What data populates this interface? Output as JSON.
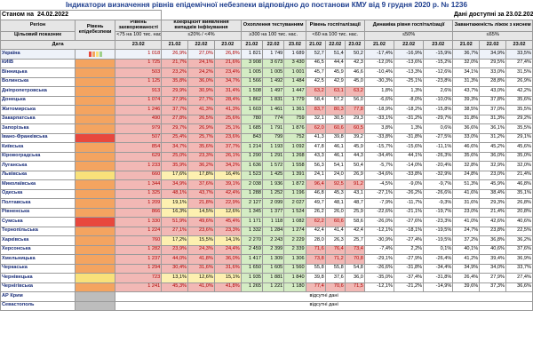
{
  "title": "Індикатори визначення рівнів епідемічної небезпеки відповідно до постанови КМУ від 9 грудня 2020 р. № 1236",
  "meta": {
    "as_of_label": "Станом на",
    "as_of_date": "24.02.2022",
    "available_label": "Дані доступні за 23.02.2022"
  },
  "headers": {
    "region": "Регіон",
    "level": "Рівень епідебезпеки",
    "incidence": "Рівень захворюваності",
    "detection": "Коефіцієнт виявлення випадків інфікування",
    "testing": "Охоплення тестуванням",
    "hospital": "Рівень госпіталізації",
    "dynamics": "Динаміка рівня госпіталізації",
    "beds": "Завантаженість ліжок з киснем",
    "target_label": "Цільовий показник",
    "incidence_target": "<75 на 100 тис. нас.",
    "detection_target": "≤20% / <4%",
    "testing_target": "≥300 на 100 тис. нас.",
    "hospital_target": "<60 на 100 тис. нас.",
    "dynamics_target": "≤50%",
    "beds_target": "≤65%",
    "date_label": "Дата",
    "d23": "23.02",
    "d21": "21.02",
    "d22": "22.02"
  },
  "no_data_text": "відсутні дані",
  "colors": {
    "red": "#e8483d",
    "orange": "#f4a460",
    "yellow": "#f9e17a",
    "green": "#9fd08a",
    "grey": "#bdbdbd"
  },
  "rows": [
    {
      "name": "Україна",
      "level": "mini",
      "inc": "1 018",
      "det": [
        "26,9%",
        "27,0%",
        "26,8%"
      ],
      "tst": [
        "1 821",
        "1 749",
        "1 689"
      ],
      "hos": [
        "52,7",
        "51,4",
        "50,2"
      ],
      "dyn": [
        "-17,4%",
        "-16,9%",
        "-15,9%"
      ],
      "bed": [
        "36,7%",
        "34,9%",
        "33,5%"
      ]
    },
    {
      "name": "КИЇВ",
      "level": "orange",
      "inc": "1 725",
      "det": [
        "21,7%",
        "24,1%",
        "21,6%"
      ],
      "tst": [
        "3 908",
        "3 673",
        "3 430"
      ],
      "hos": [
        "46,5",
        "44,4",
        "42,3"
      ],
      "dyn": [
        "-12,0%",
        "-13,6%",
        "-15,2%"
      ],
      "bed": [
        "32,0%",
        "29,5%",
        "27,4%"
      ]
    },
    {
      "name": "Вінницька",
      "level": "orange",
      "inc": "503",
      "det": [
        "23,2%",
        "24,2%",
        "23,4%"
      ],
      "tst": [
        "1 005",
        "1 005",
        "1 001"
      ],
      "hos": [
        "45,7",
        "45,9",
        "46,6"
      ],
      "dyn": [
        "-10,4%",
        "-13,3%",
        "-12,6%"
      ],
      "bed": [
        "34,1%",
        "33,0%",
        "31,5%"
      ]
    },
    {
      "name": "Волинська",
      "level": "orange",
      "inc": "1 125",
      "det": [
        "35,8%",
        "36,0%",
        "34,7%"
      ],
      "tst": [
        "1 566",
        "1 492",
        "1 484"
      ],
      "hos": [
        "42,5",
        "42,9",
        "45,0"
      ],
      "dyn": [
        "-30,3%",
        "-25,1%",
        "-23,8%"
      ],
      "bed": [
        "31,3%",
        "28,8%",
        "26,9%"
      ]
    },
    {
      "name": "Дніпропетровська",
      "level": "orange",
      "inc": "913",
      "det": [
        "29,9%",
        "30,9%",
        "31,4%"
      ],
      "tst": [
        "1 508",
        "1 497",
        "1 447"
      ],
      "hos": [
        "63,2",
        "63,1",
        "63,2"
      ],
      "dyn": [
        "1,8%",
        "1,3%",
        "2,6%"
      ],
      "bed": [
        "43,7%",
        "43,0%",
        "42,2%"
      ]
    },
    {
      "name": "Донецька",
      "level": "orange",
      "inc": "1 074",
      "det": [
        "27,9%",
        "27,7%",
        "28,4%"
      ],
      "tst": [
        "1 862",
        "1 831",
        "1 779"
      ],
      "hos": [
        "58,4",
        "57,2",
        "56,0"
      ],
      "dyn": [
        "-6,6%",
        "-8,0%",
        "-10,0%"
      ],
      "bed": [
        "39,3%",
        "37,8%",
        "35,6%"
      ]
    },
    {
      "name": "Житомирська",
      "level": "orange",
      "inc": "1 246",
      "det": [
        "37,7%",
        "41,3%",
        "41,3%"
      ],
      "tst": [
        "1 603",
        "1 461",
        "1 361"
      ],
      "hos": [
        "83,7",
        "80,3",
        "77,8"
      ],
      "dyn": [
        "-18,9%",
        "-18,2%",
        "-15,8%"
      ],
      "bed": [
        "38,5%",
        "37,0%",
        "35,5%"
      ]
    },
    {
      "name": "Закарпатська",
      "level": "orange",
      "inc": "490",
      "det": [
        "27,8%",
        "26,5%",
        "25,6%"
      ],
      "tst": [
        "780",
        "774",
        "759"
      ],
      "hos": [
        "32,1",
        "30,5",
        "29,3"
      ],
      "dyn": [
        "-33,1%",
        "-31,2%",
        "-29,7%"
      ],
      "bed": [
        "31,8%",
        "31,3%",
        "29,2%"
      ]
    },
    {
      "name": "Запорізька",
      "level": "orange",
      "inc": "979",
      "det": [
        "29,7%",
        "26,9%",
        "25,1%"
      ],
      "tst": [
        "1 685",
        "1 791",
        "1 876"
      ],
      "hos": [
        "62,0",
        "60,6",
        "60,5"
      ],
      "dyn": [
        "3,8%",
        "1,3%",
        "0,6%"
      ],
      "bed": [
        "36,6%",
        "36,1%",
        "35,5%"
      ]
    },
    {
      "name": "Івано-Франківська",
      "level": "red",
      "inc": "507",
      "det": [
        "25,4%",
        "25,7%",
        "23,6%"
      ],
      "tst": [
        "843",
        "799",
        "752"
      ],
      "hos": [
        "41,3",
        "39,8",
        "39,2"
      ],
      "dyn": [
        "-33,8%",
        "-31,8%",
        "-27,5%"
      ],
      "bed": [
        "33,0%",
        "31,2%",
        "29,1%"
      ]
    },
    {
      "name": "Київська",
      "level": "orange",
      "inc": "854",
      "det": [
        "34,7%",
        "35,6%",
        "37,7%"
      ],
      "tst": [
        "1 214",
        "1 193",
        "1 092"
      ],
      "hos": [
        "47,8",
        "46,1",
        "45,9"
      ],
      "dyn": [
        "-15,7%",
        "-15,6%",
        "-11,1%"
      ],
      "bed": [
        "46,6%",
        "45,2%",
        "45,6%"
      ]
    },
    {
      "name": "Кіровоградська",
      "level": "orange",
      "inc": "629",
      "det": [
        "25,0%",
        "23,3%",
        "26,1%"
      ],
      "tst": [
        "1 290",
        "1 291",
        "1 268"
      ],
      "hos": [
        "43,3",
        "46,1",
        "44,3"
      ],
      "dyn": [
        "-34,4%",
        "44,1%",
        "-26,3%"
      ],
      "bed": [
        "35,6%",
        "36,0%",
        "35,0%"
      ]
    },
    {
      "name": "Луганська",
      "level": "orange",
      "inc": "1 233",
      "det": [
        "35,9%",
        "36,2%",
        "34,2%"
      ],
      "tst": [
        "1 636",
        "1 572",
        "1 558"
      ],
      "hos": [
        "56,3",
        "54,1",
        "50,4"
      ],
      "dyn": [
        "-5,7%",
        "-14,0%",
        "-20,4%"
      ],
      "bed": [
        "32,8%",
        "32,9%",
        "32,0%"
      ]
    },
    {
      "name": "Львівська",
      "level": "yellow",
      "inc": "660",
      "det": [
        "17,6%",
        "17,8%",
        "16,4%"
      ],
      "tst": [
        "1 523",
        "1 425",
        "1 391"
      ],
      "hos": [
        "24,1",
        "24,0",
        "26,9"
      ],
      "dyn": [
        "-34,6%",
        "-33,8%",
        "-32,9%"
      ],
      "bed": [
        "24,8%",
        "23,0%",
        "21,4%"
      ]
    },
    {
      "name": "Миколаївська",
      "level": "orange",
      "inc": "1 344",
      "det": [
        "34,9%",
        "37,6%",
        "39,1%"
      ],
      "tst": [
        "2 038",
        "1 936",
        "1 872"
      ],
      "hos": [
        "96,4",
        "92,5",
        "91,2"
      ],
      "dyn": [
        "-4,5%",
        "-9,0%",
        "-9,7%"
      ],
      "bed": [
        "51,3%",
        "45,9%",
        "46,8%"
      ]
    },
    {
      "name": "Одеська",
      "level": "orange",
      "inc": "1 325",
      "det": [
        "48,1%",
        "43,7%",
        "42,4%"
      ],
      "tst": [
        "1 288",
        "1 252",
        "1 196"
      ],
      "hos": [
        "46,8",
        "45,3",
        "43,1"
      ],
      "dyn": [
        "-27,1%",
        "-26,2%",
        "-26,6%"
      ],
      "bed": [
        "41,6%",
        "38,4%",
        "35,1%"
      ]
    },
    {
      "name": "Полтавська",
      "level": "orange",
      "inc": "1 209",
      "det": [
        "19,1%",
        "21,8%",
        "22,9%"
      ],
      "tst": [
        "2 127",
        "2 099",
        "2 027"
      ],
      "hos": [
        "49,7",
        "48,1",
        "48,7"
      ],
      "dyn": [
        "-7,9%",
        "-11,7%",
        "-9,3%"
      ],
      "bed": [
        "31,6%",
        "29,3%",
        "26,8%"
      ]
    },
    {
      "name": "Рівненська",
      "level": "orange",
      "inc": "866",
      "det": [
        "16,3%",
        "14,5%",
        "12,6%"
      ],
      "tst": [
        "1 345",
        "1 377",
        "1 524"
      ],
      "hos": [
        "26,2",
        "26,0",
        "25,9"
      ],
      "dyn": [
        "-22,6%",
        "-21,1%",
        "-19,7%"
      ],
      "bed": [
        "23,0%",
        "21,4%",
        "20,8%"
      ]
    },
    {
      "name": "Сумська",
      "level": "red",
      "inc": "1 330",
      "det": [
        "51,9%",
        "49,6%",
        "45,4%"
      ],
      "tst": [
        "1 171",
        "1 118",
        "1 082"
      ],
      "hos": [
        "62,2",
        "60,6",
        "58,6"
      ],
      "dyn": [
        "-26,0%",
        "-27,6%",
        "-23,3%"
      ],
      "bed": [
        "41,0%",
        "42,6%",
        "40,6%"
      ]
    },
    {
      "name": "Тернопільська",
      "level": "orange",
      "inc": "1 224",
      "det": [
        "27,1%",
        "23,6%",
        "23,3%"
      ],
      "tst": [
        "1 332",
        "1 284",
        "1 274"
      ],
      "hos": [
        "42,4",
        "41,4",
        "42,4"
      ],
      "dyn": [
        "-12,1%",
        "-18,1%",
        "-19,5%"
      ],
      "bed": [
        "24,7%",
        "23,8%",
        "22,5%"
      ]
    },
    {
      "name": "Харківська",
      "level": "orange",
      "inc": "760",
      "det": [
        "17,2%",
        "15,5%",
        "14,1%"
      ],
      "tst": [
        "2 270",
        "2 243",
        "2 229"
      ],
      "hos": [
        "28,0",
        "26,3",
        "25,7"
      ],
      "dyn": [
        "-30,9%",
        "-27,4%",
        "-19,5%"
      ],
      "bed": [
        "37,2%",
        "36,8%",
        "36,2%"
      ]
    },
    {
      "name": "Херсонська",
      "level": "orange",
      "inc": "1 282",
      "det": [
        "23,9%",
        "24,3%",
        "24,4%"
      ],
      "tst": [
        "2 459",
        "2 399",
        "2 339"
      ],
      "hos": [
        "71,6",
        "76,4",
        "73,4"
      ],
      "dyn": [
        "-7,4%",
        "2,2%",
        "0,1%"
      ],
      "bed": [
        "40,1%",
        "40,6%",
        "37,6%"
      ]
    },
    {
      "name": "Хмельницька",
      "level": "orange",
      "inc": "1 237",
      "det": [
        "44,0%",
        "41,8%",
        "36,0%"
      ],
      "tst": [
        "1 417",
        "1 309",
        "1 306"
      ],
      "hos": [
        "73,8",
        "71,2",
        "70,8"
      ],
      "dyn": [
        "-29,1%",
        "-27,9%",
        "-26,4%"
      ],
      "bed": [
        "41,2%",
        "39,4%",
        "36,9%"
      ]
    },
    {
      "name": "Черкаська",
      "level": "orange",
      "inc": "1 294",
      "det": [
        "30,4%",
        "31,6%",
        "31,6%"
      ],
      "tst": [
        "1 650",
        "1 605",
        "1 560"
      ],
      "hos": [
        "55,8",
        "55,8",
        "54,8"
      ],
      "dyn": [
        "-26,6%",
        "-31,8%",
        "-34,4%"
      ],
      "bed": [
        "34,9%",
        "34,0%",
        "33,7%"
      ]
    },
    {
      "name": "Чернівецька",
      "level": "yellow",
      "inc": "723",
      "det": [
        "13,1%",
        "12,6%",
        "15,1%"
      ],
      "tst": [
        "1 935",
        "1 881",
        "1 840"
      ],
      "hos": [
        "39,8",
        "37,6",
        "36,0"
      ],
      "dyn": [
        "-35,0%",
        "-37,4%",
        "-31,8%"
      ],
      "bed": [
        "26,4%",
        "27,9%",
        "27,4%"
      ]
    },
    {
      "name": "Чернігівська",
      "level": "orange",
      "inc": "1 241",
      "det": [
        "45,3%",
        "41,0%",
        "41,8%"
      ],
      "tst": [
        "1 265",
        "1 221",
        "1 180"
      ],
      "hos": [
        "77,4",
        "70,6",
        "71,5"
      ],
      "dyn": [
        "-12,1%",
        "-21,2%",
        "-14,9%"
      ],
      "bed": [
        "39,6%",
        "37,3%",
        "36,6%"
      ]
    }
  ],
  "nodata_rows": [
    "АР Крим",
    "Севастополь"
  ]
}
